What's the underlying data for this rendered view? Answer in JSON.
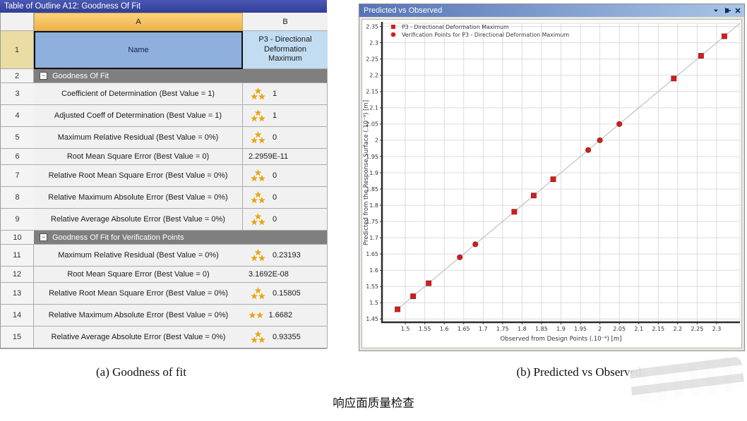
{
  "left_panel": {
    "title": "Table of Outline A12: Goodness Of Fit",
    "columns": {
      "row_header": "",
      "a": "A",
      "b": "B"
    },
    "row1": {
      "num": "1",
      "name": "Name",
      "value": "P3 - Directional Deformation Maximum"
    },
    "rows": [
      {
        "num": "2",
        "type": "group",
        "label": "Goodness Of Fit"
      },
      {
        "num": "3",
        "type": "metric",
        "label": "Coefficient of Determination (Best Value = 1)",
        "stars": 3,
        "value": "1"
      },
      {
        "num": "4",
        "type": "metric",
        "label": "Adjusted Coeff of Determination (Best Value = 1)",
        "stars": 3,
        "value": "1"
      },
      {
        "num": "5",
        "type": "metric",
        "label": "Maximum Relative Residual (Best Value = 0%)",
        "stars": 3,
        "value": "0"
      },
      {
        "num": "6",
        "type": "metric",
        "label": "Root Mean Square Error (Best Value = 0)",
        "stars": 0,
        "value": "2.2959E-11"
      },
      {
        "num": "7",
        "type": "metric",
        "label": "Relative Root Mean Square Error (Best Value = 0%)",
        "stars": 3,
        "value": "0"
      },
      {
        "num": "8",
        "type": "metric",
        "label": "Relative Maximum Absolute Error (Best Value = 0%)",
        "stars": 3,
        "value": "0"
      },
      {
        "num": "9",
        "type": "metric",
        "label": "Relative Average Absolute Error (Best Value = 0%)",
        "stars": 3,
        "value": "0"
      },
      {
        "num": "10",
        "type": "group",
        "label": "Goodness Of Fit for Verification Points"
      },
      {
        "num": "11",
        "type": "metric",
        "label": "Maximum Relative Residual (Best Value = 0%)",
        "stars": 3,
        "value": "0.23193"
      },
      {
        "num": "12",
        "type": "metric",
        "label": "Root Mean Square Error (Best Value = 0)",
        "stars": 0,
        "value": "3.1692E-08"
      },
      {
        "num": "13",
        "type": "metric",
        "label": "Relative Root Mean Square Error (Best Value = 0%)",
        "stars": 3,
        "value": "0.15805"
      },
      {
        "num": "14",
        "type": "metric",
        "label": "Relative Maximum Absolute Error (Best Value = 0%)",
        "stars": 2,
        "value": "1.6682"
      },
      {
        "num": "15",
        "type": "metric",
        "label": "Relative Average Absolute Error (Best Value = 0%)",
        "stars": 3,
        "value": "0.93355"
      }
    ]
  },
  "right_panel": {
    "title": "Predicted vs Observed",
    "window_icons": [
      "chevron-down",
      "pin",
      "close"
    ]
  },
  "chart_data": {
    "type": "scatter",
    "title": "Predicted vs Observed",
    "xlabel": "Observed from Design Points  (.10⁻⁹)  [m]",
    "ylabel": "Predicted from the Response Surface  (.10⁻⁹)  [m]",
    "xlim": [
      1.44,
      2.36
    ],
    "ylim": [
      1.44,
      2.36
    ],
    "x_ticks": [
      1.5,
      1.55,
      1.6,
      1.65,
      1.7,
      1.75,
      1.8,
      1.85,
      1.9,
      1.95,
      2,
      2.05,
      2.1,
      2.15,
      2.2,
      2.25,
      2.3
    ],
    "y_ticks": [
      1.45,
      1.5,
      1.55,
      1.6,
      1.65,
      1.7,
      1.75,
      1.8,
      1.85,
      1.9,
      1.95,
      2,
      2.05,
      2.1,
      2.15,
      2.2,
      2.25,
      2.3,
      2.35
    ],
    "grid": true,
    "legend_position": "top-left",
    "series": [
      {
        "name": "P3 - Directional Deformation Maximum",
        "marker": "square",
        "color": "#d11f1f",
        "points": [
          [
            1.48,
            1.48
          ],
          [
            1.52,
            1.52
          ],
          [
            1.56,
            1.56
          ],
          [
            1.78,
            1.78
          ],
          [
            1.83,
            1.83
          ],
          [
            1.88,
            1.88
          ],
          [
            2.19,
            2.19
          ],
          [
            2.26,
            2.26
          ],
          [
            2.32,
            2.32
          ]
        ]
      },
      {
        "name": "Verification Points for P3 - Directional Deformation Maximum",
        "marker": "circle",
        "color": "#d11f1f",
        "points": [
          [
            1.64,
            1.64
          ],
          [
            1.68,
            1.68
          ],
          [
            1.97,
            1.97
          ],
          [
            2.0,
            2.0
          ],
          [
            2.05,
            2.05
          ]
        ]
      }
    ],
    "fit_line": {
      "from": [
        1.47,
        1.47
      ],
      "to": [
        2.36,
        2.36
      ],
      "color": "#c6c6c6"
    }
  },
  "captions": {
    "a": "(a) Goodness of fit",
    "b": "(b) Predicted vs Observed",
    "main": "响应面质量检查"
  },
  "colors": {
    "table_title_bar": "#3847a0",
    "header_selected": "#f5c263",
    "row1_name_cell": "#8fb0dc",
    "row1_value_cell": "#c2dcf2",
    "group_row": "#7f7f7f",
    "star": "#f0a300",
    "point_red": "#d11f1f",
    "panel_header_left": "#5674b6",
    "panel_header_right": "#a9c6e6",
    "gridline": "#dcdcdc",
    "axis": "#2b2b2b"
  }
}
